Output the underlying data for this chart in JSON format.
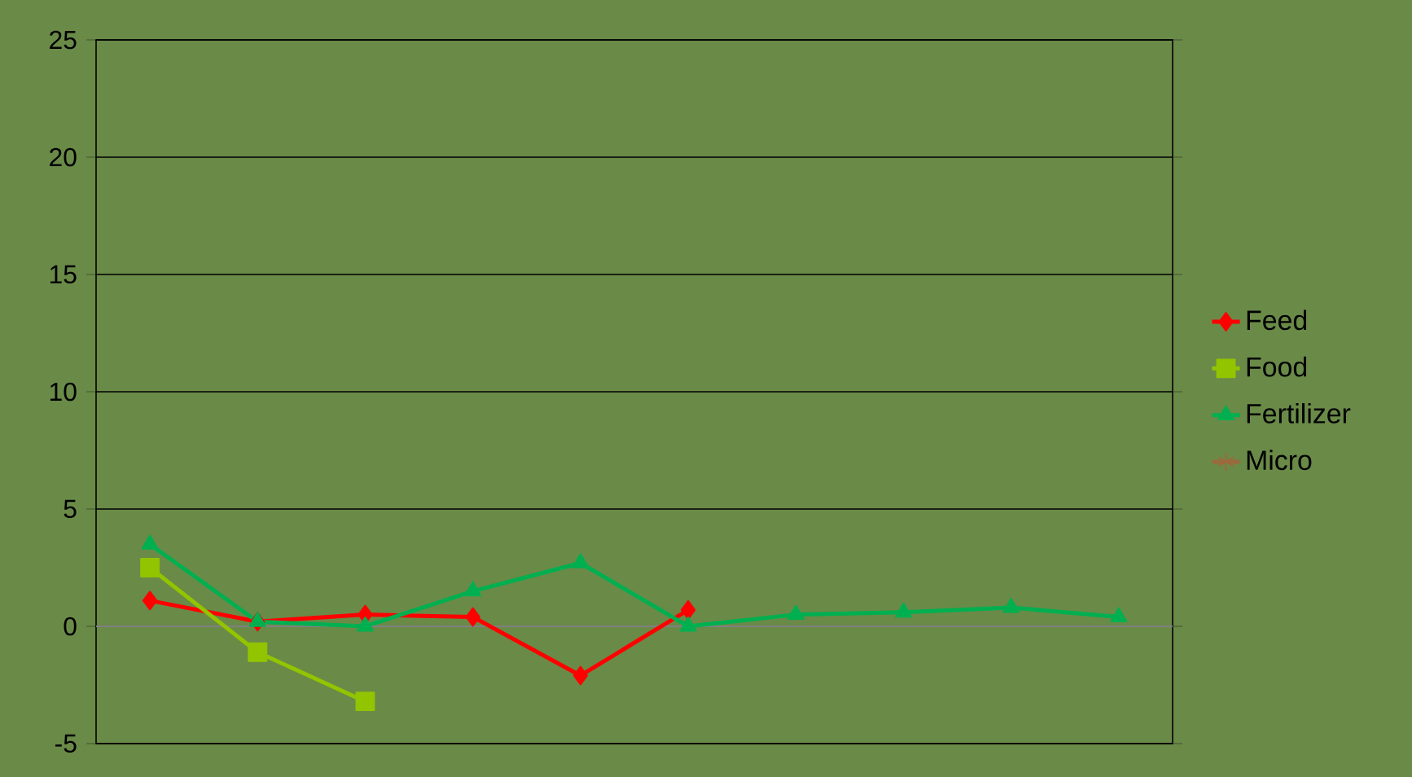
{
  "chart_data": {
    "type": "line",
    "categories": [
      null,
      null,
      null,
      null,
      null,
      null,
      null,
      null,
      null,
      null
    ],
    "series": [
      {
        "name": "Feed",
        "color": "#ff0000",
        "marker": "diamond",
        "values": [
          1.1,
          0.2,
          0.5,
          0.4,
          -2.1,
          0.7,
          null,
          null,
          null,
          null
        ]
      },
      {
        "name": "Food",
        "color": "#92c400",
        "marker": "square",
        "values": [
          2.5,
          -1.1,
          -3.2,
          null,
          null,
          null,
          null,
          null,
          null,
          null
        ]
      },
      {
        "name": "Fertilizer",
        "color": "#00b050",
        "marker": "triangle",
        "values": [
          3.5,
          0.2,
          0.0,
          1.5,
          2.7,
          0.0,
          0.5,
          0.6,
          0.8,
          0.4
        ]
      },
      {
        "name": "Micro",
        "color": "#9b6a3c",
        "marker": "star",
        "values": [
          null,
          null,
          null,
          null,
          null,
          null,
          null,
          null,
          null,
          null
        ]
      }
    ],
    "ylim": [
      -5,
      25
    ],
    "yticks": [
      -5,
      0,
      5,
      10,
      15,
      20,
      25
    ],
    "grid": "y",
    "legend": "right",
    "tick_labels": "y"
  }
}
